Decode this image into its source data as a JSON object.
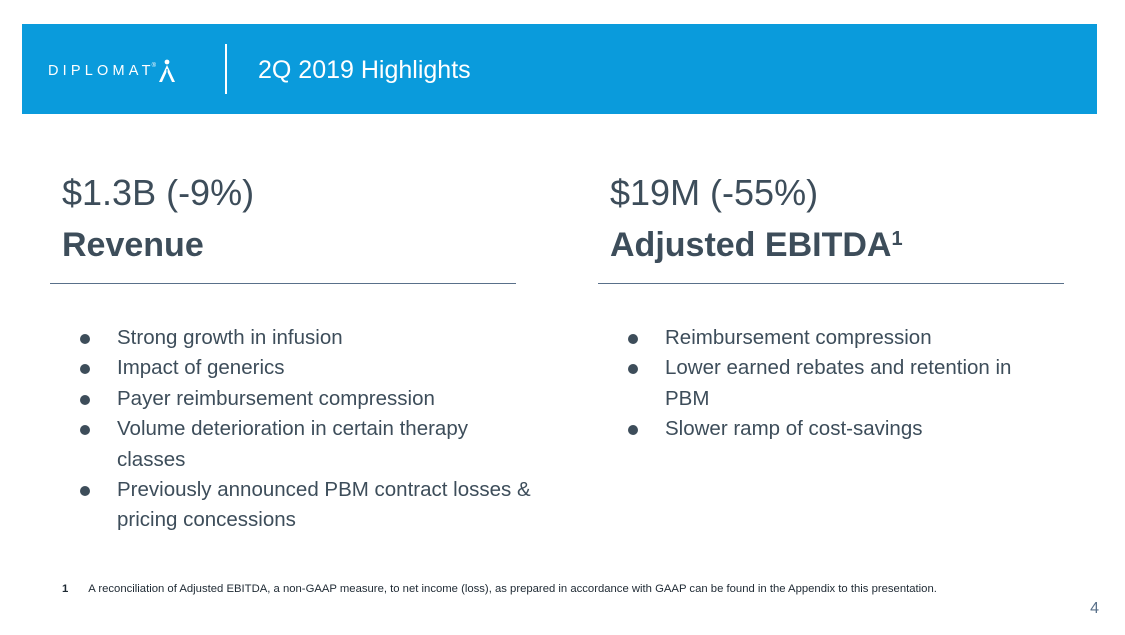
{
  "header": {
    "logo_text": "DIPLOMAT",
    "logo_registered": "®",
    "title": "2Q 2019 Highlights"
  },
  "left": {
    "metric": "$1.3B (-9%)",
    "label": "Revenue",
    "bullets": [
      "Strong growth in infusion",
      "Impact of generics",
      "Payer reimbursement compression",
      "Volume deterioration in certain therapy classes",
      "Previously announced PBM contract losses & pricing concessions"
    ]
  },
  "right": {
    "metric": "$19M (-55%)",
    "label": "Adjusted EBITDA",
    "label_superscript": "1",
    "bullets": [
      "Reimbursement compression",
      "Lower earned rebates and retention in PBM",
      "Slower ramp of cost-savings"
    ]
  },
  "footnote": {
    "number": "1",
    "text": "A reconciliation of Adjusted EBITDA, a non-GAAP measure, to net income (loss), as prepared in accordance with GAAP can be found in the Appendix to this presentation."
  },
  "page_number": "4",
  "colors": {
    "header_bg": "#0a9bdc",
    "text": "#3d4d5a",
    "rule": "#59708a"
  }
}
